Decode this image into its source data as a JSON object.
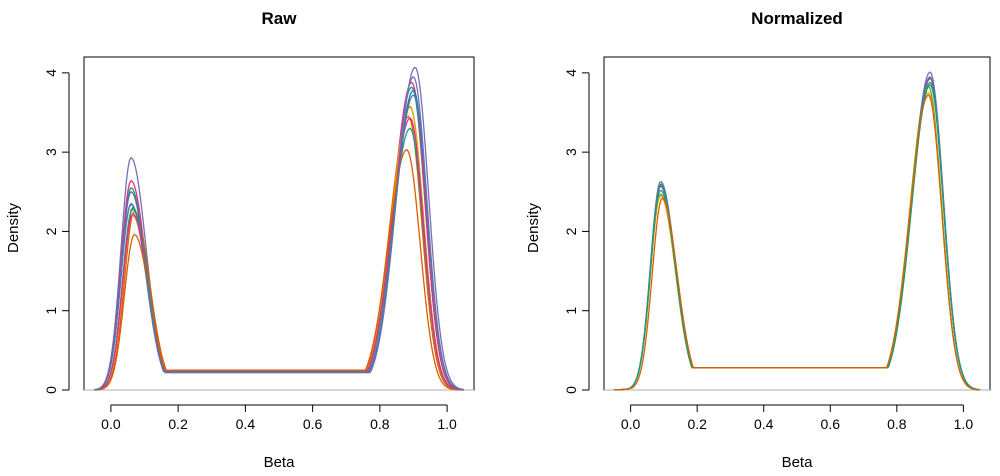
{
  "chart_data": [
    {
      "type": "line",
      "title": "Raw",
      "xlabel": "Beta",
      "ylabel": "Density",
      "xlim": [
        -0.08,
        1.08
      ],
      "ylim": [
        0,
        4.2
      ],
      "xticks": [
        "0.0",
        "0.2",
        "0.4",
        "0.6",
        "0.8",
        "1.0"
      ],
      "yticks": [
        "0",
        "1",
        "2",
        "3",
        "4"
      ],
      "grid": false,
      "baseline": 0,
      "series": [
        {
          "color": "#7570B3",
          "low_peak": [
            0.06,
            2.93
          ],
          "high_peak": [
            0.905,
            4.07
          ],
          "valley": 0.22
        },
        {
          "color": "#1B9E77",
          "low_peak": [
            0.06,
            2.55
          ],
          "high_peak": [
            0.895,
            3.82
          ],
          "valley": 0.23
        },
        {
          "color": "#E7298A",
          "low_peak": [
            0.06,
            2.64
          ],
          "high_peak": [
            0.895,
            3.88
          ],
          "valley": 0.23
        },
        {
          "color": "#66A61E",
          "low_peak": [
            0.065,
            2.28
          ],
          "high_peak": [
            0.89,
            3.57
          ],
          "valley": 0.24
        },
        {
          "color": "#D95F02",
          "low_peak": [
            0.07,
            2.25
          ],
          "high_peak": [
            0.885,
            3.45
          ],
          "valley": 0.24
        },
        {
          "color": "#E6AB02",
          "low_peak": [
            0.065,
            2.2
          ],
          "high_peak": [
            0.89,
            3.58
          ],
          "valley": 0.24
        },
        {
          "color": "#1F78B4",
          "low_peak": [
            0.06,
            2.35
          ],
          "high_peak": [
            0.9,
            3.78
          ],
          "valley": 0.23
        },
        {
          "color": "#7570B3",
          "low_peak": [
            0.06,
            2.34
          ],
          "high_peak": [
            0.9,
            3.95
          ],
          "valley": 0.22
        },
        {
          "color": "#1B9E77",
          "low_peak": [
            0.065,
            2.3
          ],
          "high_peak": [
            0.89,
            3.3
          ],
          "valley": 0.24
        },
        {
          "color": "#E7298A",
          "low_peak": [
            0.065,
            2.22
          ],
          "high_peak": [
            0.89,
            3.43
          ],
          "valley": 0.24
        },
        {
          "color": "#D95F02",
          "low_peak": [
            0.07,
            1.96
          ],
          "high_peak": [
            0.88,
            3.03
          ],
          "valley": 0.25
        },
        {
          "color": "#4E79A7",
          "low_peak": [
            0.06,
            2.5
          ],
          "high_peak": [
            0.9,
            3.72
          ],
          "valley": 0.23
        }
      ]
    },
    {
      "type": "line",
      "title": "Normalized",
      "xlabel": "Beta",
      "ylabel": "Density",
      "xlim": [
        -0.08,
        1.08
      ],
      "ylim": [
        0,
        4.2
      ],
      "xticks": [
        "0.0",
        "0.2",
        "0.4",
        "0.6",
        "0.8",
        "1.0"
      ],
      "yticks": [
        "0",
        "1",
        "2",
        "3",
        "4"
      ],
      "grid": false,
      "baseline": 0,
      "series": [
        {
          "color": "#7570B3",
          "low_peak": [
            0.09,
            2.63
          ],
          "high_peak": [
            0.9,
            4.01
          ],
          "valley": 0.28
        },
        {
          "color": "#1B9E77",
          "low_peak": [
            0.09,
            2.6
          ],
          "high_peak": [
            0.9,
            3.88
          ],
          "valley": 0.28
        },
        {
          "color": "#E7298A",
          "low_peak": [
            0.09,
            2.57
          ],
          "high_peak": [
            0.9,
            3.93
          ],
          "valley": 0.28
        },
        {
          "color": "#66A61E",
          "low_peak": [
            0.09,
            2.47
          ],
          "high_peak": [
            0.895,
            3.83
          ],
          "valley": 0.28
        },
        {
          "color": "#E6AB02",
          "low_peak": [
            0.09,
            2.45
          ],
          "high_peak": [
            0.895,
            3.75
          ],
          "valley": 0.28
        },
        {
          "color": "#4E79A7",
          "low_peak": [
            0.09,
            2.58
          ],
          "high_peak": [
            0.9,
            3.95
          ],
          "valley": 0.28
        },
        {
          "color": "#1B9E77",
          "low_peak": [
            0.09,
            2.52
          ],
          "high_peak": [
            0.9,
            3.85
          ],
          "valley": 0.28
        },
        {
          "color": "#D95F02",
          "low_peak": [
            0.095,
            2.42
          ],
          "high_peak": [
            0.895,
            3.72
          ],
          "valley": 0.28
        }
      ]
    }
  ]
}
